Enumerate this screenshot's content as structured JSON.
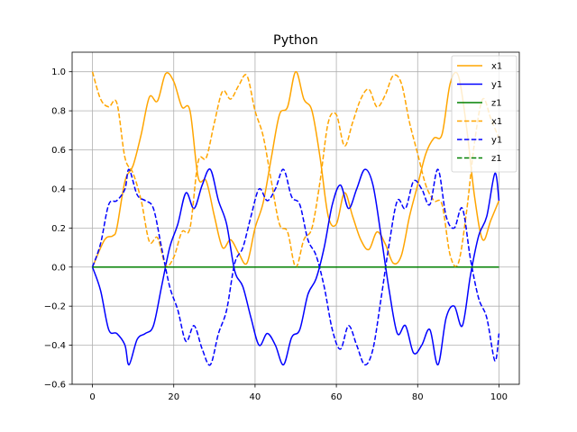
{
  "chart_data": {
    "type": "line",
    "title": "Python",
    "xlabel": "",
    "ylabel": "",
    "xlim": [
      -5,
      105
    ],
    "ylim": [
      -0.6,
      1.1
    ],
    "xticks": [
      0,
      20,
      40,
      60,
      80,
      100
    ],
    "yticks": [
      -0.6,
      -0.4,
      -0.2,
      0.0,
      0.2,
      0.4,
      0.6,
      0.8,
      1.0
    ],
    "ytick_labels": [
      "−0.6",
      "−0.4",
      "−0.2",
      "0.0",
      "0.2",
      "0.4",
      "0.6",
      "0.8",
      "1.0"
    ],
    "grid": true,
    "legend_position": "top-right",
    "colors": {
      "orange": "#ffa500",
      "blue": "#0000ff",
      "green": "#008000"
    },
    "series": [
      {
        "name": "x1",
        "color": "#ffa500",
        "dash": false,
        "x": [
          0,
          3,
          5,
          6,
          8,
          10,
          12,
          14,
          16,
          18,
          20,
          22,
          24,
          26,
          28,
          30,
          32,
          34,
          36,
          38,
          40,
          42,
          44,
          46,
          48,
          50,
          52,
          54,
          56,
          58,
          60,
          62,
          64,
          66,
          68,
          70,
          72,
          74,
          76,
          78,
          80,
          82,
          84,
          86,
          88,
          90,
          92,
          94,
          96,
          98,
          100
        ],
        "y": [
          0.0,
          0.14,
          0.16,
          0.2,
          0.44,
          0.52,
          0.68,
          0.87,
          0.85,
          0.99,
          0.95,
          0.82,
          0.8,
          0.46,
          0.44,
          0.26,
          0.1,
          0.14,
          0.07,
          0.02,
          0.2,
          0.33,
          0.56,
          0.78,
          0.82,
          1.0,
          0.86,
          0.8,
          0.56,
          0.26,
          0.22,
          0.38,
          0.26,
          0.14,
          0.09,
          0.18,
          0.12,
          0.02,
          0.06,
          0.26,
          0.42,
          0.58,
          0.66,
          0.68,
          0.94,
          0.98,
          0.72,
          0.36,
          0.14,
          0.24,
          0.34
        ]
      },
      {
        "name": "y1",
        "color": "#0000ff",
        "dash": false,
        "x": [
          0,
          2,
          4,
          6,
          8,
          9,
          11,
          13,
          15,
          17,
          19,
          21,
          23,
          25,
          27,
          29,
          31,
          33,
          35,
          37,
          39,
          41,
          43,
          45,
          47,
          49,
          51,
          53,
          55,
          57,
          59,
          61,
          63,
          65,
          67,
          69,
          71,
          73,
          75,
          77,
          79,
          81,
          83,
          85,
          87,
          89,
          91,
          93,
          95,
          97,
          99,
          100
        ],
        "y": [
          0.0,
          -0.12,
          -0.32,
          -0.34,
          -0.4,
          -0.5,
          -0.37,
          -0.34,
          -0.3,
          -0.1,
          0.1,
          0.22,
          0.38,
          0.3,
          0.42,
          0.5,
          0.34,
          0.22,
          -0.02,
          -0.1,
          -0.26,
          -0.4,
          -0.34,
          -0.4,
          -0.5,
          -0.36,
          -0.32,
          -0.14,
          -0.06,
          0.1,
          0.32,
          0.42,
          0.3,
          0.4,
          0.5,
          0.42,
          0.16,
          -0.12,
          -0.34,
          -0.3,
          -0.44,
          -0.4,
          -0.32,
          -0.5,
          -0.26,
          -0.2,
          -0.3,
          -0.04,
          0.16,
          0.26,
          0.48,
          0.34
        ]
      },
      {
        "name": "z1",
        "color": "#008000",
        "dash": false,
        "x": [
          0,
          100
        ],
        "y": [
          0.0,
          0.0
        ]
      },
      {
        "name": "x1",
        "color": "#ffa500",
        "dash": true,
        "x": [
          0,
          2,
          4,
          6,
          8,
          10,
          12,
          14,
          16,
          18,
          20,
          22,
          24,
          26,
          28,
          30,
          32,
          34,
          36,
          38,
          40,
          42,
          44,
          46,
          48,
          50,
          52,
          54,
          56,
          58,
          60,
          62,
          64,
          66,
          68,
          70,
          72,
          74,
          76,
          78,
          80,
          82,
          84,
          86,
          88,
          90,
          92,
          94,
          96,
          98,
          100
        ],
        "y": [
          1.0,
          0.86,
          0.82,
          0.84,
          0.56,
          0.48,
          0.34,
          0.13,
          0.15,
          0.01,
          0.05,
          0.18,
          0.2,
          0.54,
          0.56,
          0.74,
          0.9,
          0.86,
          0.93,
          0.98,
          0.8,
          0.67,
          0.44,
          0.22,
          0.18,
          0.0,
          0.14,
          0.2,
          0.44,
          0.74,
          0.78,
          0.62,
          0.74,
          0.86,
          0.91,
          0.82,
          0.88,
          0.98,
          0.94,
          0.74,
          0.58,
          0.42,
          0.34,
          0.32,
          0.06,
          0.02,
          0.28,
          0.64,
          0.86,
          0.76,
          0.66
        ]
      },
      {
        "name": "y1",
        "color": "#0000ff",
        "dash": true,
        "x": [
          0,
          2,
          4,
          6,
          8,
          9,
          11,
          13,
          15,
          17,
          19,
          21,
          23,
          25,
          27,
          29,
          31,
          33,
          35,
          37,
          39,
          41,
          43,
          45,
          47,
          49,
          51,
          53,
          55,
          57,
          59,
          61,
          63,
          65,
          67,
          69,
          71,
          73,
          75,
          77,
          79,
          81,
          83,
          85,
          87,
          89,
          91,
          93,
          95,
          97,
          99,
          100
        ],
        "y": [
          0.0,
          0.12,
          0.32,
          0.34,
          0.4,
          0.5,
          0.37,
          0.34,
          0.3,
          0.1,
          -0.1,
          -0.22,
          -0.38,
          -0.3,
          -0.42,
          -0.5,
          -0.34,
          -0.22,
          0.02,
          0.1,
          0.26,
          0.4,
          0.34,
          0.4,
          0.5,
          0.36,
          0.32,
          0.14,
          0.06,
          -0.1,
          -0.32,
          -0.42,
          -0.3,
          -0.4,
          -0.5,
          -0.42,
          -0.16,
          0.12,
          0.34,
          0.3,
          0.44,
          0.4,
          0.32,
          0.5,
          0.26,
          0.2,
          0.3,
          0.04,
          -0.16,
          -0.26,
          -0.48,
          -0.34
        ]
      },
      {
        "name": "z1",
        "color": "#008000",
        "dash": true,
        "x": [
          0,
          100
        ],
        "y": [
          0.0,
          0.0
        ]
      }
    ]
  }
}
